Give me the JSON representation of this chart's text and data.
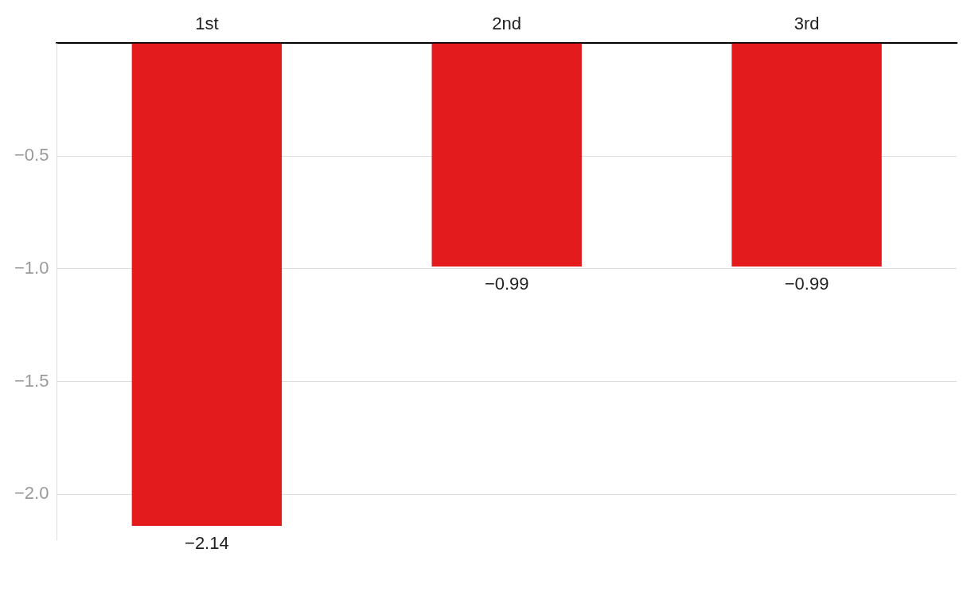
{
  "chart_data": {
    "type": "bar",
    "categories": [
      "1st",
      "2nd",
      "3rd"
    ],
    "values": [
      -2.14,
      -0.99,
      -0.99
    ],
    "value_labels": [
      "−2.14",
      "−0.99",
      "−0.99"
    ],
    "color": "#e31b1d",
    "ylim": [
      -2.2,
      0
    ],
    "yticks": [
      {
        "value": -0.5,
        "label": "−0.5"
      },
      {
        "value": -1,
        "label": "−1.0"
      },
      {
        "value": -1.5,
        "label": "−1.5"
      },
      {
        "value": -2,
        "label": "−2.0"
      }
    ],
    "grid": "y",
    "legend": false
  }
}
